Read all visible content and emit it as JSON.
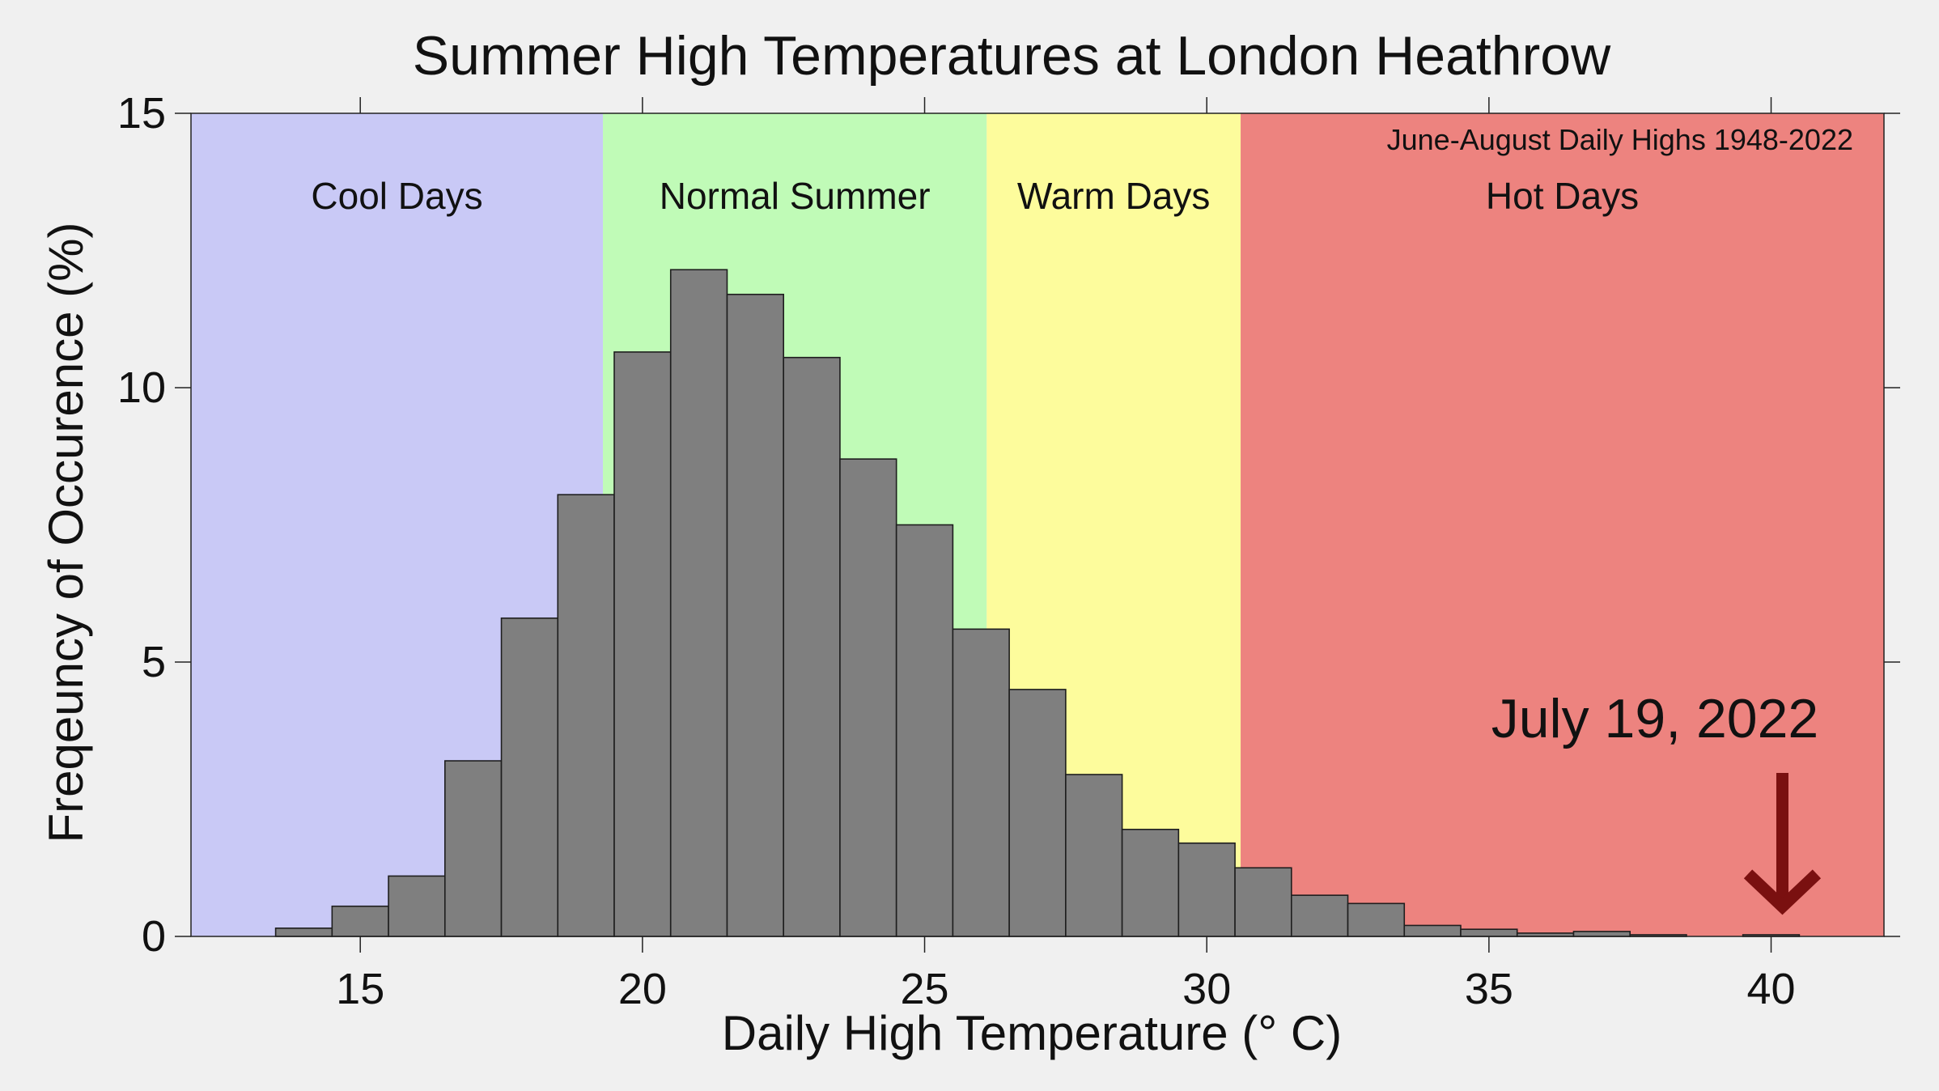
{
  "chart_data": {
    "type": "bar",
    "title": "Summer High Temperatures at London Heathrow",
    "subtitle": "June-August Daily Highs 1948-2022",
    "xlabel": "Daily High Temperature (° C)",
    "ylabel": "Freqeuncy of Occurence (%)",
    "xlim": [
      12,
      42
    ],
    "ylim": [
      0,
      15
    ],
    "xticks": [
      15,
      20,
      25,
      30,
      35,
      40
    ],
    "yticks": [
      0,
      5,
      10,
      15
    ],
    "grid": false,
    "bin_width": 1,
    "bins": [
      {
        "x": 14,
        "value": 0.15
      },
      {
        "x": 15,
        "value": 0.55
      },
      {
        "x": 16,
        "value": 1.1
      },
      {
        "x": 17,
        "value": 3.2
      },
      {
        "x": 18,
        "value": 5.8
      },
      {
        "x": 19,
        "value": 8.05
      },
      {
        "x": 20,
        "value": 10.65
      },
      {
        "x": 21,
        "value": 12.15
      },
      {
        "x": 22,
        "value": 11.7
      },
      {
        "x": 23,
        "value": 10.55
      },
      {
        "x": 24,
        "value": 8.7
      },
      {
        "x": 25,
        "value": 7.5
      },
      {
        "x": 26,
        "value": 5.6
      },
      {
        "x": 27,
        "value": 4.5
      },
      {
        "x": 28,
        "value": 2.95
      },
      {
        "x": 29,
        "value": 1.95
      },
      {
        "x": 30,
        "value": 1.7
      },
      {
        "x": 31,
        "value": 1.25
      },
      {
        "x": 32,
        "value": 0.75
      },
      {
        "x": 33,
        "value": 0.6
      },
      {
        "x": 34,
        "value": 0.2
      },
      {
        "x": 35,
        "value": 0.13
      },
      {
        "x": 36,
        "value": 0.06
      },
      {
        "x": 37,
        "value": 0.09
      },
      {
        "x": 38,
        "value": 0.03
      },
      {
        "x": 40,
        "value": 0.03
      }
    ],
    "regions": [
      {
        "label": "Cool Days",
        "from": 12,
        "to": 19.3,
        "color": "#c9c9f6"
      },
      {
        "label": "Normal Summer",
        "from": 19.3,
        "to": 26.1,
        "color": "#c0fbb7"
      },
      {
        "label": "Warm Days",
        "from": 26.1,
        "to": 30.6,
        "color": "#fdfc9c"
      },
      {
        "label": "Hot Days",
        "from": 30.6,
        "to": 42,
        "color": "#ed837f"
      }
    ],
    "bar_color": "#7f7f7f",
    "annotation": {
      "text": "July 19, 2022",
      "x": 40.2,
      "color": "#7a1010"
    }
  }
}
